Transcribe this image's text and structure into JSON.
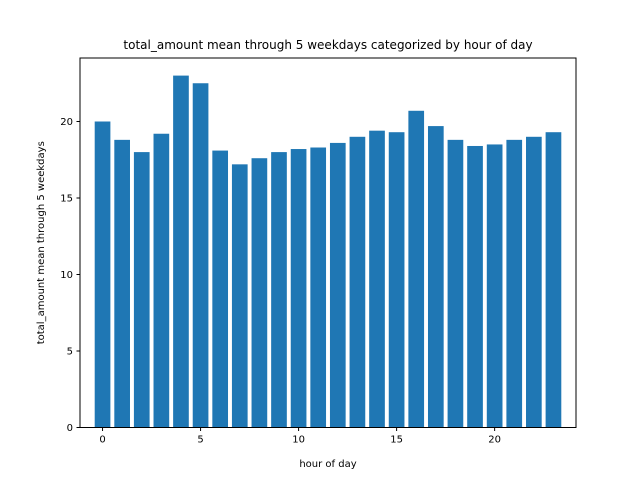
{
  "chart_data": {
    "type": "bar",
    "title": "total_amount mean through 5 weekdays categorized by hour of day",
    "xlabel": "hour of day",
    "ylabel": "total_amount mean through 5 weekdays",
    "x": [
      0,
      1,
      2,
      3,
      4,
      5,
      6,
      7,
      8,
      9,
      10,
      11,
      12,
      13,
      14,
      15,
      16,
      17,
      18,
      19,
      20,
      21,
      22,
      23
    ],
    "values": [
      20.0,
      18.8,
      18.0,
      19.2,
      23.0,
      22.5,
      18.1,
      17.2,
      17.6,
      18.0,
      18.2,
      18.3,
      18.6,
      19.0,
      19.4,
      19.3,
      20.7,
      19.7,
      18.8,
      18.4,
      18.5,
      18.8,
      19.0,
      19.3
    ],
    "xlim": [
      -1.15,
      24.15
    ],
    "ylim": [
      0,
      24.15
    ],
    "xticks": [
      0,
      5,
      10,
      15,
      20
    ],
    "yticks": [
      0,
      5,
      10,
      15,
      20
    ],
    "bar_color": "#1f77b4",
    "grid": false,
    "legend": "none"
  }
}
